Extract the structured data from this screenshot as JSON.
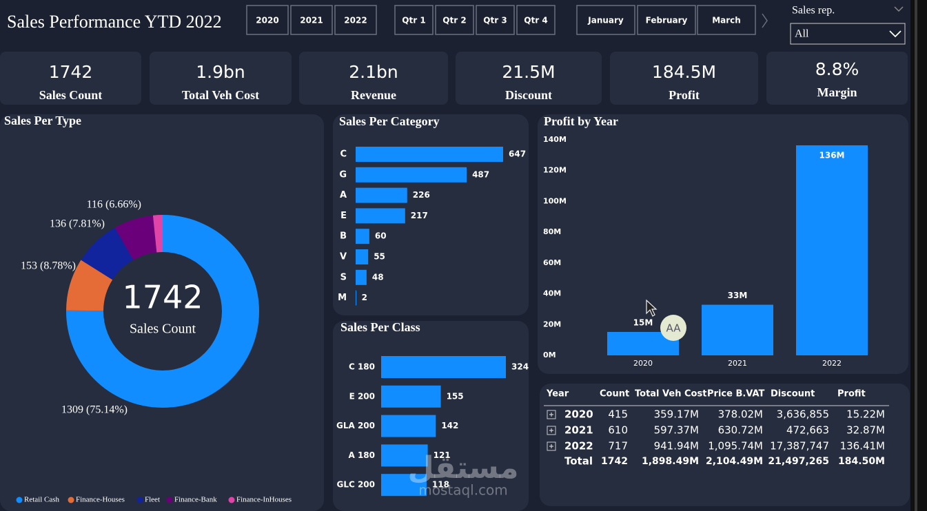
{
  "header": {
    "title": "Sales Performance YTD 2022",
    "years": [
      "2020",
      "2021",
      "2022"
    ],
    "quarters": [
      "Qtr 1",
      "Qtr 2",
      "Qtr 3",
      "Qtr 4"
    ],
    "months": [
      "January",
      "February",
      "March"
    ],
    "filter_label": "Sales rep.",
    "filter_value": "All"
  },
  "kpis": [
    {
      "value": 1742,
      "label": "Sales Count"
    },
    {
      "value": "1.9bn",
      "label": "Total Veh Cost"
    },
    {
      "value": "2.1bn",
      "label": "Revenue"
    },
    {
      "value": "21.5M",
      "label": "Discount"
    },
    {
      "value": "184.5M",
      "label": "Profit"
    },
    {
      "value": "8.8%",
      "label": "Margin"
    }
  ],
  "chart_data": [
    {
      "type": "pie",
      "title": "Sales Per Type",
      "categories": [
        "Retail Cash",
        "Finance-Houses",
        "Fleet",
        "Finance-Bank",
        "Finance-InHouses"
      ],
      "values": [
        1309,
        153,
        136,
        116,
        28
      ],
      "value_labels": [
        "1309 (75.14%)",
        "153 (8.78%)",
        "136 (7.81%)",
        "116 (6.66%)",
        null
      ],
      "colors": [
        "#118DFF",
        "#E66C37",
        "#12239E",
        "#6B007B",
        "#E044A7"
      ],
      "center_value": 1742,
      "center_label": "Sales Count",
      "legend": "bottom"
    },
    {
      "type": "bar",
      "orientation": "horizontal",
      "title": "Sales Per Category",
      "categories": [
        "C",
        "G",
        "A",
        "E",
        "B",
        "V",
        "S",
        "M"
      ],
      "values": [
        647,
        487,
        226,
        217,
        60,
        55,
        48,
        2
      ],
      "color": "#118DFF"
    },
    {
      "type": "bar",
      "orientation": "horizontal",
      "title": "Sales Per Class",
      "categories": [
        "C 180",
        "E 200",
        "GLA 200",
        "A 180",
        "GLC 200"
      ],
      "values": [
        324,
        155,
        142,
        121,
        118
      ],
      "color": "#118DFF"
    },
    {
      "type": "bar",
      "orientation": "vertical",
      "title": "Profit by Year",
      "categories": [
        "2020",
        "2021",
        "2022"
      ],
      "values": [
        15.22,
        32.87,
        136.41
      ],
      "value_labels": [
        "15M",
        "33M",
        "136M"
      ],
      "color": "#118DFF",
      "ylim": [
        0,
        140
      ],
      "yticks": [
        {
          "value": 0,
          "label": "0M"
        },
        {
          "value": 20,
          "label": "20M"
        },
        {
          "value": 40,
          "label": "40M"
        },
        {
          "value": 60,
          "label": "60M"
        },
        {
          "value": 80,
          "label": "80M"
        },
        {
          "value": 100,
          "label": "100M"
        },
        {
          "value": 120,
          "label": "120M"
        },
        {
          "value": 140,
          "label": "140M"
        }
      ],
      "grid": false
    }
  ],
  "table": {
    "columns": [
      "Year",
      "Count",
      "Total Veh Cost",
      "Price B.VAT",
      "Discount",
      "Profit"
    ],
    "rows": [
      [
        "2020",
        "415",
        "359.17M",
        "378.02M",
        "3,636,855",
        "15.22M"
      ],
      [
        "2021",
        "610",
        "597.37M",
        "630.72M",
        "472,663",
        "32.87M"
      ],
      [
        "2022",
        "717",
        "941.94M",
        "1,095.74M",
        "17,387,747",
        "136.41M"
      ]
    ],
    "total": [
      "Total",
      "1742",
      "1,898.49M",
      "2,104.49M",
      "21,497,265",
      "184.50M"
    ]
  },
  "overlay": {
    "badge": "AA"
  },
  "watermark": {
    "arabic": "مستقل",
    "latin": "mostaql.com"
  }
}
